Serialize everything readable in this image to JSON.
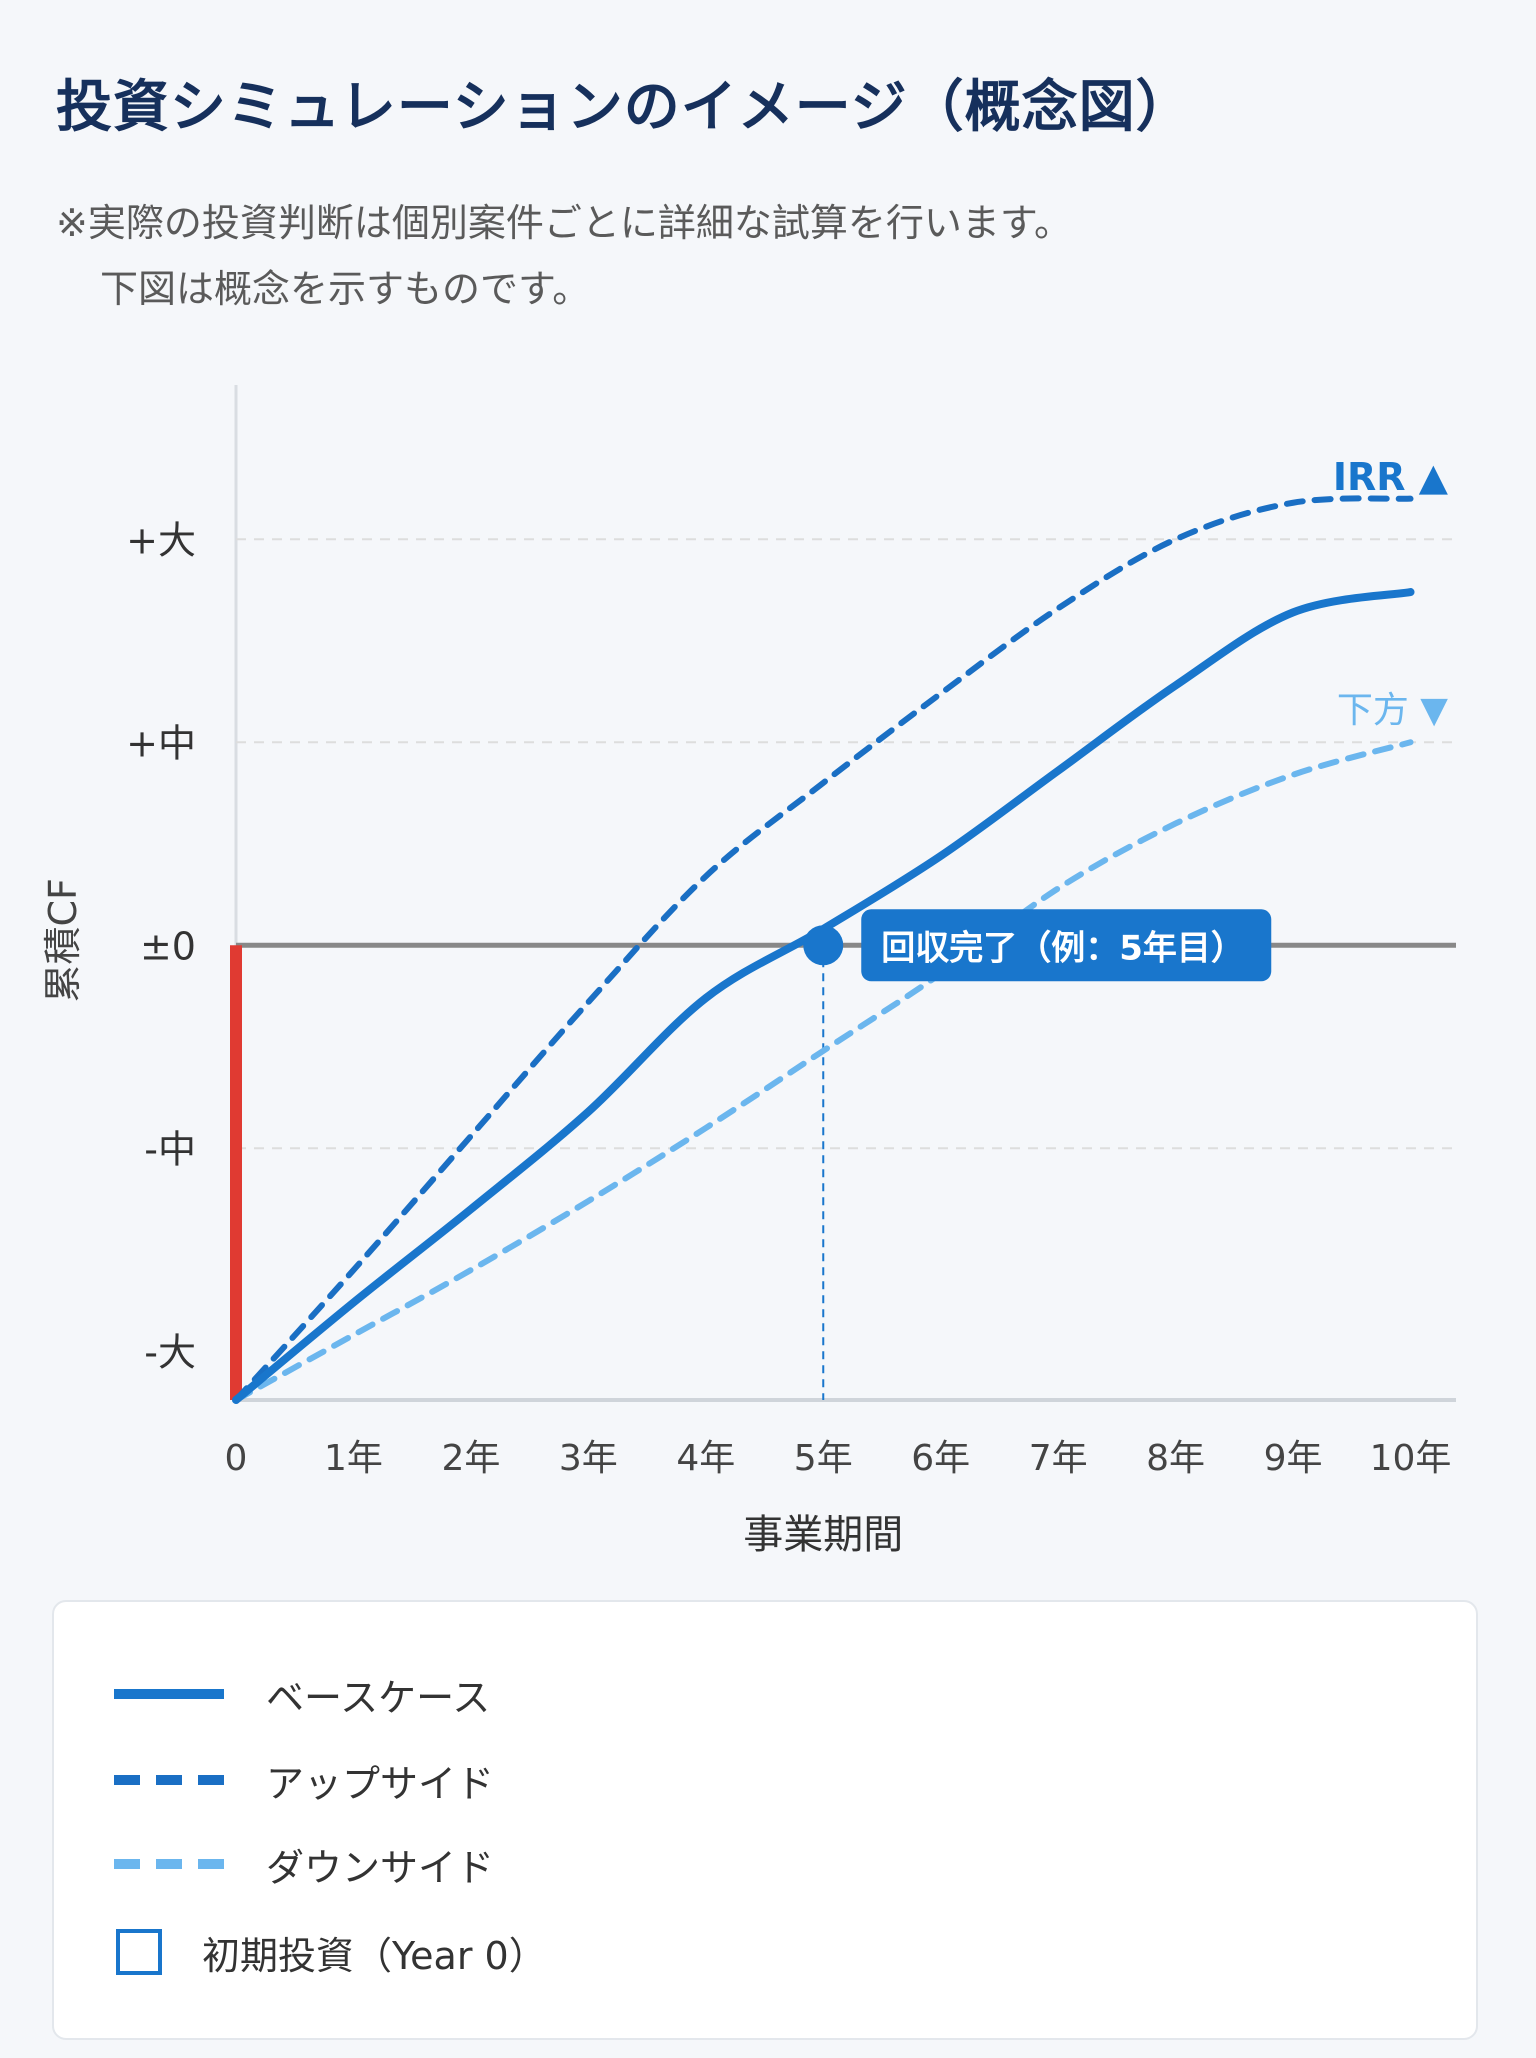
{
  "title": "投資シミュレーションのイメージ（概念図）",
  "notes": [
    "※実際の投資判断は個別案件ごとに詳細な試算を行います。",
    "下図は概念を示すものです。"
  ],
  "colors": {
    "title": "#16305c",
    "base": "#1976cc",
    "upside": "#1a6fc4",
    "downside": "#6bb6ee",
    "initial_investment": "#e03a32",
    "zero_line": "#888888",
    "grid": "#dddddd"
  },
  "chart_data": {
    "type": "line",
    "xlabel": "事業期間",
    "ylabel": "累積CF",
    "x_ticks": [
      "0",
      "1年",
      "2年",
      "3年",
      "4年",
      "5年",
      "6年",
      "7年",
      "8年",
      "9年",
      "10年"
    ],
    "x": [
      0,
      1,
      2,
      3,
      4,
      5,
      6,
      7,
      8,
      9,
      10
    ],
    "y_ticks": [
      {
        "label": "-大",
        "value": -1
      },
      {
        "label": "-中",
        "value": -0.5
      },
      {
        "label": "±0",
        "value": 0
      },
      {
        "label": "+中",
        "value": 0.5
      },
      {
        "label": "+大",
        "value": 1
      }
    ],
    "ylim": [
      -1.12,
      1.38
    ],
    "xlim": [
      0,
      10.2
    ],
    "grid": true,
    "series": [
      {
        "name": "ベースケース",
        "style": "solid",
        "values": [
          -1.12,
          -0.88,
          -0.65,
          -0.41,
          -0.13,
          0.04,
          0.22,
          0.43,
          0.64,
          0.82,
          0.87
        ]
      },
      {
        "name": "アップサイド",
        "style": "dashed",
        "values": [
          -1.12,
          -0.8,
          -0.47,
          -0.14,
          0.17,
          0.4,
          0.62,
          0.83,
          1.0,
          1.09,
          1.1
        ]
      },
      {
        "name": "ダウンサイド",
        "style": "dashed-light",
        "values": [
          -1.12,
          -0.96,
          -0.8,
          -0.63,
          -0.45,
          -0.26,
          -0.07,
          0.14,
          0.3,
          0.42,
          0.5
        ]
      }
    ],
    "initial_investment": {
      "x": 0,
      "from": 0,
      "to": -1.12
    },
    "annotations": {
      "payback": {
        "x": 5,
        "y": 0,
        "label": "回収完了（例：5年目）"
      },
      "irr_up": "IRR ▲",
      "downside": "下方 ▼"
    }
  },
  "legend": [
    {
      "label": "ベースケース",
      "kind": "solid"
    },
    {
      "label": "アップサイド",
      "kind": "up"
    },
    {
      "label": "ダウンサイド",
      "kind": "down"
    },
    {
      "label": "初期投資（Year 0）",
      "kind": "box"
    }
  ]
}
